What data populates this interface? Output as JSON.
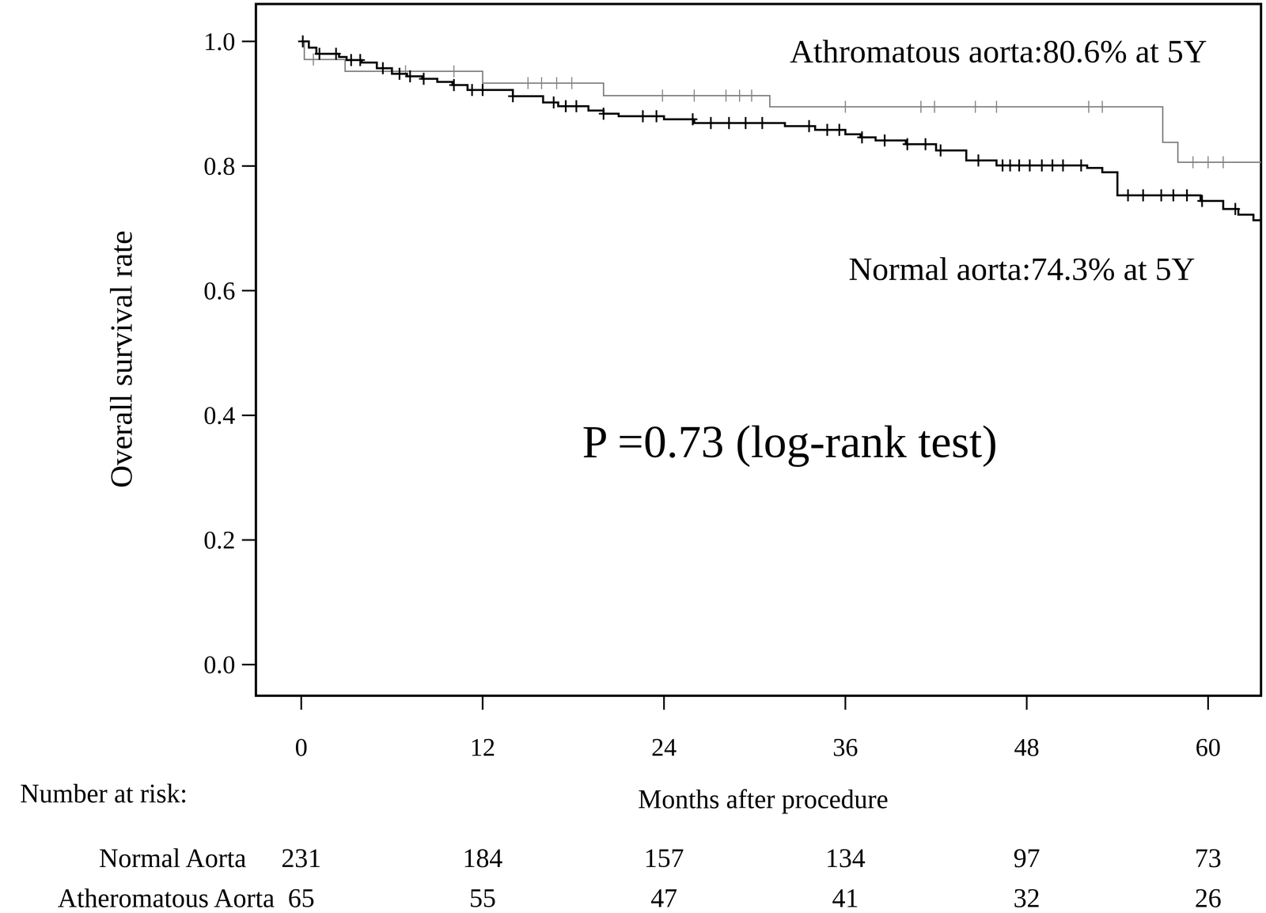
{
  "chart_data": {
    "type": "kaplan-meier",
    "x_label": "Months after procedure",
    "y_label": "Overall survival rate",
    "annotations": [
      "Athromatous aorta:80.6% at 5Y",
      "Normal aorta:74.3% at 5Y",
      "P =0.73 (log-rank test)"
    ],
    "risk_table_title": "Number at risk:",
    "xlim": [
      -3,
      63.5
    ],
    "ylim": [
      -0.05,
      1.06
    ],
    "xticks": [
      0,
      12,
      24,
      36,
      48,
      60
    ],
    "yticks": [
      {
        "value": 0,
        "label": "0.0"
      },
      0.2,
      0.4,
      0.6,
      0.8,
      {
        "value": 1,
        "label": "1.0"
      }
    ],
    "grid": false,
    "series": [
      {
        "name": "Normal Aorta",
        "color": "#000000",
        "line_style": "solid",
        "marker": "plus",
        "x": [
          0,
          0.5,
          1,
          2.5,
          3,
          4,
          5,
          6,
          7,
          8,
          9,
          10,
          11,
          14,
          16,
          17,
          19,
          20,
          21,
          24,
          26,
          32,
          34,
          36,
          37,
          38,
          40,
          42,
          44,
          46,
          52,
          53,
          54,
          59.5,
          61,
          62,
          63
        ],
        "values": [
          1.0,
          0.99,
          0.98,
          0.975,
          0.97,
          0.966,
          0.957,
          0.948,
          0.944,
          0.94,
          0.935,
          0.93,
          0.922,
          0.912,
          0.902,
          0.896,
          0.889,
          0.884,
          0.88,
          0.875,
          0.869,
          0.864,
          0.858,
          0.851,
          0.846,
          0.841,
          0.835,
          0.825,
          0.809,
          0.801,
          0.797,
          0.79,
          0.753,
          0.744,
          0.731,
          0.722,
          0.713
        ],
        "censored": [
          0.1,
          1.2,
          2.3,
          3.3,
          3.9,
          5.4,
          6.5,
          7.2,
          8.1,
          10.1,
          11.3,
          12,
          14,
          16.7,
          17.5,
          18.2,
          20,
          22.6,
          23.5,
          25.9,
          27.1,
          28.3,
          29.4,
          30.5,
          33.6,
          34.8,
          35.6,
          37.1,
          38.6,
          40.1,
          41.3,
          42.3,
          44.8,
          46.4,
          46.9,
          47.5,
          48.2,
          49,
          49.7,
          50.4,
          51.6,
          54.7,
          55.7,
          56.9,
          57.7,
          58.6,
          59.6,
          61.8
        ],
        "at_risk": [
          231,
          184,
          157,
          134,
          97,
          73
        ]
      },
      {
        "name": "Atheromatous Aorta",
        "color": "#808080",
        "line_style": "solid",
        "marker": "plus",
        "x": [
          0,
          0.2,
          2.9,
          12,
          20,
          31,
          57,
          58
        ],
        "values": [
          1.0,
          0.971,
          0.952,
          0.933,
          0.913,
          0.895,
          0.838,
          0.806
        ],
        "censored": [
          0.8,
          6.9,
          10.1,
          15,
          15.9,
          16.9,
          17.9,
          23.9,
          26,
          28.1,
          29,
          29.8,
          36,
          41,
          41.9,
          44.6,
          46,
          52.1,
          53,
          59,
          60,
          61
        ],
        "at_risk": [
          65,
          55,
          47,
          41,
          32,
          26
        ]
      }
    ]
  }
}
